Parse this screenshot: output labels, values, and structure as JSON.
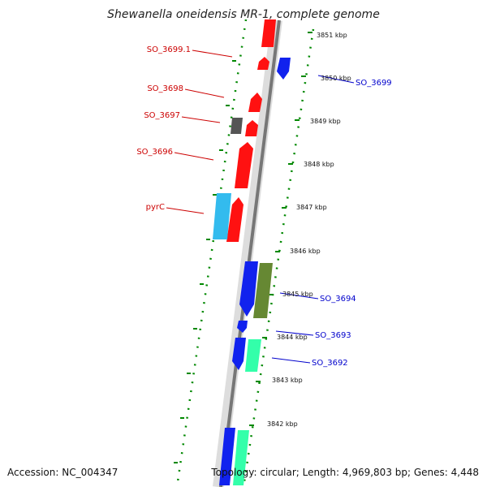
{
  "map": {
    "title": "Shewanella oneidensis MR-1, complete genome",
    "accession": "Accession: NC_004347",
    "summary": "Topology: circular; Length: 4,969,803 bp; Genes: 4,448"
  },
  "colors": {
    "forward_strand_gene": "#ff0000",
    "reverse_strand_gene": "#0000ee",
    "cds_cyan": "#33bbee",
    "cds_green": "#33ffaa",
    "cds_olive": "#668833",
    "gray_feature": "#555555",
    "tick_green": "#008800"
  },
  "kbp_labels": [
    "3851 kbp",
    "3850 kbp",
    "3849 kbp",
    "3848 kbp",
    "3847 kbp",
    "3846 kbp",
    "3845 kbp",
    "3844 kbp",
    "3843 kbp",
    "3842 kbp"
  ],
  "left_gene_labels": [
    "SO_3699.1",
    "SO_3698",
    "SO_3697",
    "SO_3696",
    "pyrC"
  ],
  "right_gene_labels": [
    "SO_3699",
    "SO_3694",
    "SO_3693",
    "SO_3692"
  ]
}
